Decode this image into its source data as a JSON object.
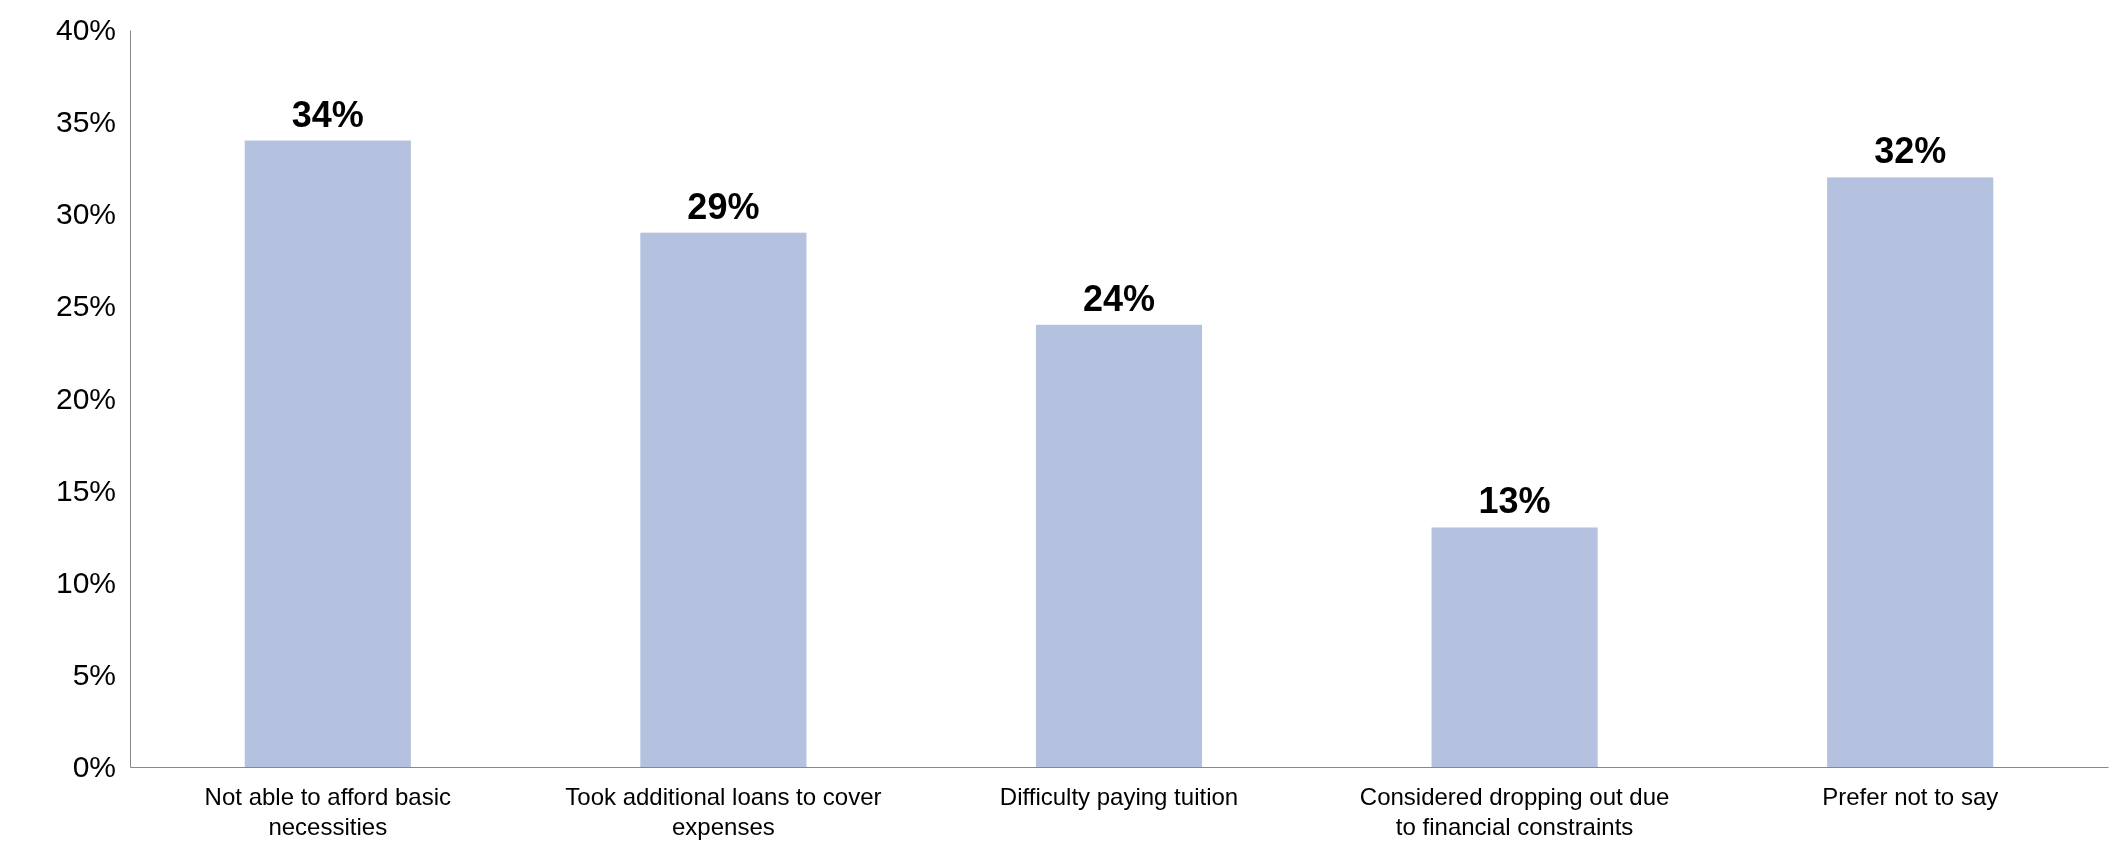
{
  "chart_data": {
    "type": "bar",
    "categories": [
      "Not able to afford basic necessities",
      "Took additional loans to cover expenses",
      "Difficulty paying tuition",
      "Considered dropping out due to financial constraints",
      "Prefer not to say"
    ],
    "values": [
      34,
      29,
      24,
      13,
      32
    ],
    "value_labels": [
      "34%",
      "29%",
      "24%",
      "13%",
      "32%"
    ],
    "color": "#b4c2e0",
    "ylim": [
      0,
      40
    ],
    "yticks": [
      {
        "value": 0,
        "label": "0%"
      },
      {
        "value": 5,
        "label": "5%"
      },
      {
        "value": 10,
        "label": "10%"
      },
      {
        "value": 15,
        "label": "15%"
      },
      {
        "value": 20,
        "label": "20%"
      },
      {
        "value": 25,
        "label": "25%"
      },
      {
        "value": 30,
        "label": "30%"
      },
      {
        "value": 35,
        "label": "35%"
      },
      {
        "value": 40,
        "label": "40%"
      }
    ],
    "grid": false
  }
}
